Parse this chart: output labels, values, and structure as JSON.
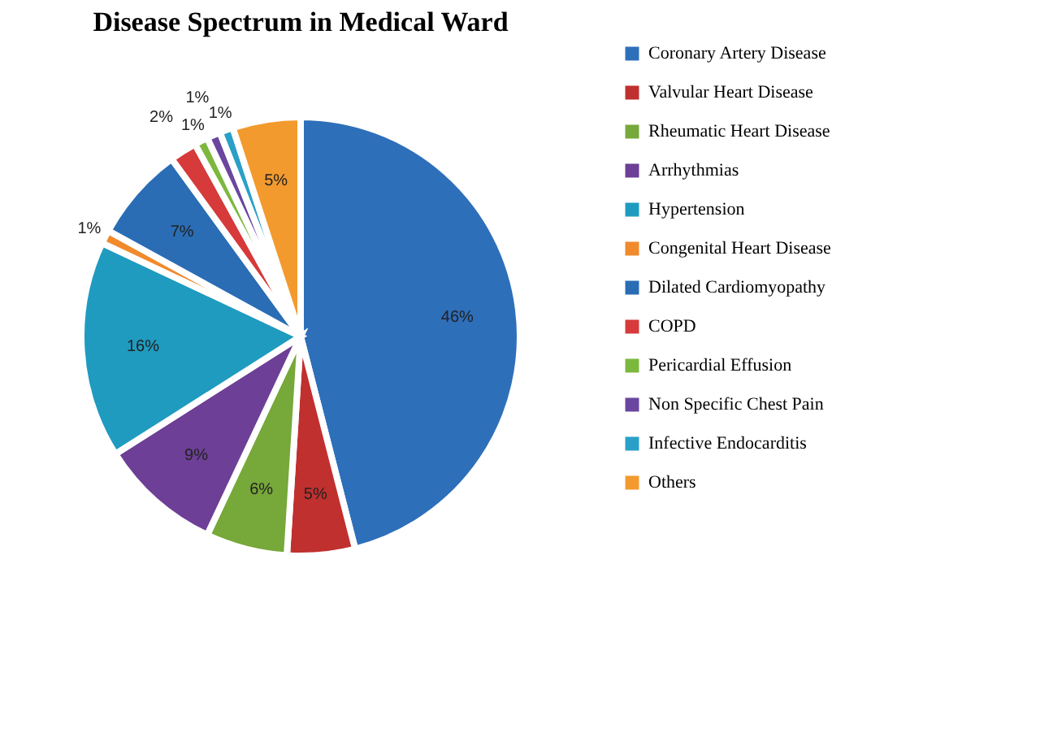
{
  "chart_data": {
    "type": "pie",
    "title": "Disease Spectrum in Medical Ward",
    "categories": [
      "Coronary Artery Disease",
      "Valvular Heart Disease",
      "Rheumatic Heart Disease",
      "Arrhythmias",
      "Hypertension",
      "Congenital Heart Disease",
      "Dilated Cardiomyopathy",
      "COPD",
      "Pericardial Effusion",
      "Non Specific Chest Pain",
      "Infective Endocarditis",
      "Others"
    ],
    "values": [
      46,
      5,
      6,
      9,
      16,
      1,
      7,
      2,
      1,
      1,
      1,
      5
    ],
    "colors": [
      "#2e6fba",
      "#c0302e",
      "#77a83a",
      "#6d3f96",
      "#1f9bc0",
      "#f08a2c",
      "#2a6db5",
      "#d63a3a",
      "#7cb83e",
      "#6a46a0",
      "#2aa0c8",
      "#f39a2e"
    ],
    "value_labels": [
      "46%",
      "5%",
      "6%",
      "9%",
      "16%",
      "1%",
      "7%",
      "2%",
      "1%",
      "1%",
      "1%",
      "5%"
    ],
    "legend": "right"
  }
}
